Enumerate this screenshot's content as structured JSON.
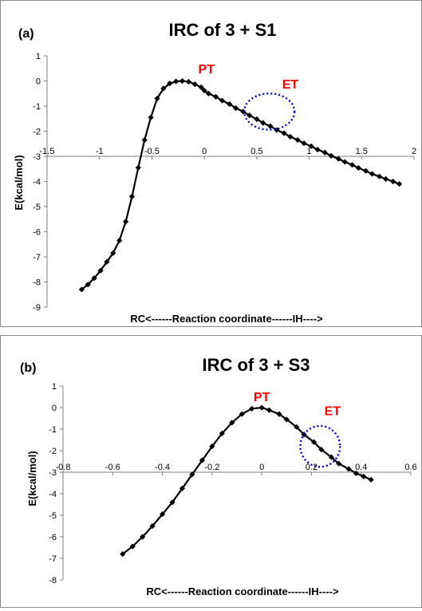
{
  "chart_data": [
    {
      "type": "line",
      "panel_label": "(a)",
      "title": "IRC of 3 + S1",
      "xlabel": "RC<------Reaction coordinate------IH---->",
      "ylabel": "E(kcal/mol)",
      "xlim": [
        -1.5,
        2
      ],
      "ylim": [
        -9,
        1
      ],
      "x_ticks": [
        "-1.5",
        "-1",
        "-0.5",
        "0",
        "0.5",
        "1",
        "1.5",
        "2"
      ],
      "y_ticks": [
        "1",
        "0",
        "-1",
        "-2",
        "-3",
        "-4",
        "-5",
        "-6",
        "-7",
        "-8",
        "-9"
      ],
      "x_tick_values": [
        -1.5,
        -1,
        -0.5,
        0,
        0.5,
        1,
        1.5,
        2
      ],
      "y_tick_values": [
        1,
        0,
        -1,
        -2,
        -3,
        -4,
        -5,
        -6,
        -7,
        -8,
        -9
      ],
      "grid": false,
      "marker": "diamond",
      "line_color": "#000000",
      "annotations": [
        {
          "text": "PT",
          "x": 0.02,
          "y": 0.3,
          "color": "#ff0000"
        },
        {
          "text": "ET",
          "x": 0.82,
          "y": -0.3,
          "color": "#ff0000"
        }
      ],
      "highlight_ellipse": {
        "cx": 0.62,
        "cy": -1.22,
        "rx": 0.24,
        "ry": 0.72,
        "color": "#0000cc",
        "style": "dotted"
      },
      "series": [
        {
          "x": [
            -1.17,
            -1.11,
            -1.05,
            -0.99,
            -0.93,
            -0.87,
            -0.81,
            -0.75,
            -0.69,
            -0.63,
            -0.57,
            -0.51,
            -0.45,
            -0.39,
            -0.33,
            -0.27,
            -0.21,
            -0.15,
            -0.09,
            -0.03,
            0,
            0.04,
            0.11,
            0.17,
            0.24,
            0.3,
            0.37,
            0.43,
            0.5,
            0.56,
            0.63,
            0.69,
            0.76,
            0.82,
            0.89,
            0.95,
            1.02,
            1.08,
            1.15,
            1.21,
            1.28,
            1.34,
            1.41,
            1.47,
            1.54,
            1.6,
            1.67,
            1.73,
            1.8,
            1.86
          ],
          "y": [
            -8.3,
            -8.1,
            -7.85,
            -7.55,
            -7.2,
            -6.85,
            -6.35,
            -5.6,
            -4.6,
            -3.45,
            -2.35,
            -1.45,
            -0.7,
            -0.3,
            -0.1,
            -0.02,
            0,
            -0.03,
            -0.13,
            -0.25,
            -0.38,
            -0.5,
            -0.63,
            -0.78,
            -0.92,
            -1.08,
            -1.22,
            -1.37,
            -1.52,
            -1.67,
            -1.8,
            -1.95,
            -2.08,
            -2.22,
            -2.35,
            -2.48,
            -2.6,
            -2.73,
            -2.85,
            -2.98,
            -3.1,
            -3.22,
            -3.34,
            -3.46,
            -3.58,
            -3.7,
            -3.8,
            -3.9,
            -4.0,
            -4.1
          ]
        }
      ]
    },
    {
      "type": "line",
      "panel_label": "(b)",
      "title": "IRC of 3 + S3",
      "xlabel": "RC<------Reaction coordinate------IH---->",
      "ylabel": "E(kcal/mol)",
      "xlim": [
        -0.8,
        0.6
      ],
      "ylim": [
        -8,
        1
      ],
      "x_ticks": [
        "-0.8",
        "-0.6",
        "-0.4",
        "-0.2",
        "0",
        "0.2",
        "0.4",
        "0.6"
      ],
      "y_ticks": [
        "1",
        "0",
        "-1",
        "-2",
        "-3",
        "-4",
        "-5",
        "-6",
        "-7",
        "-8"
      ],
      "x_tick_values": [
        -0.8,
        -0.6,
        -0.4,
        -0.2,
        0,
        0.2,
        0.4,
        0.6
      ],
      "y_tick_values": [
        1,
        0,
        -1,
        -2,
        -3,
        -4,
        -5,
        -6,
        -7,
        -8
      ],
      "grid": false,
      "marker": "diamond",
      "line_color": "#000000",
      "annotations": [
        {
          "text": "PT",
          "x": 0.0,
          "y": 0.3,
          "color": "#ff0000"
        },
        {
          "text": "ET",
          "x": 0.285,
          "y": -0.35,
          "color": "#ff0000"
        }
      ],
      "highlight_ellipse": {
        "cx": 0.235,
        "cy": -1.8,
        "rx": 0.08,
        "ry": 0.95,
        "color": "#0000cc",
        "style": "dotted"
      },
      "series": [
        {
          "x": [
            -0.56,
            -0.52,
            -0.48,
            -0.44,
            -0.4,
            -0.36,
            -0.32,
            -0.28,
            -0.24,
            -0.2,
            -0.16,
            -0.12,
            -0.08,
            -0.04,
            0,
            0.03,
            0.07,
            0.1,
            0.14,
            0.17,
            0.21,
            0.24,
            0.28,
            0.31,
            0.35,
            0.38,
            0.41,
            0.44
          ],
          "y": [
            -6.8,
            -6.45,
            -6.0,
            -5.5,
            -4.95,
            -4.4,
            -3.75,
            -3.1,
            -2.45,
            -1.8,
            -1.2,
            -0.7,
            -0.3,
            -0.05,
            0,
            -0.12,
            -0.3,
            -0.55,
            -0.9,
            -1.25,
            -1.6,
            -1.95,
            -2.3,
            -2.6,
            -2.85,
            -3.05,
            -3.2,
            -3.35
          ]
        }
      ]
    }
  ]
}
